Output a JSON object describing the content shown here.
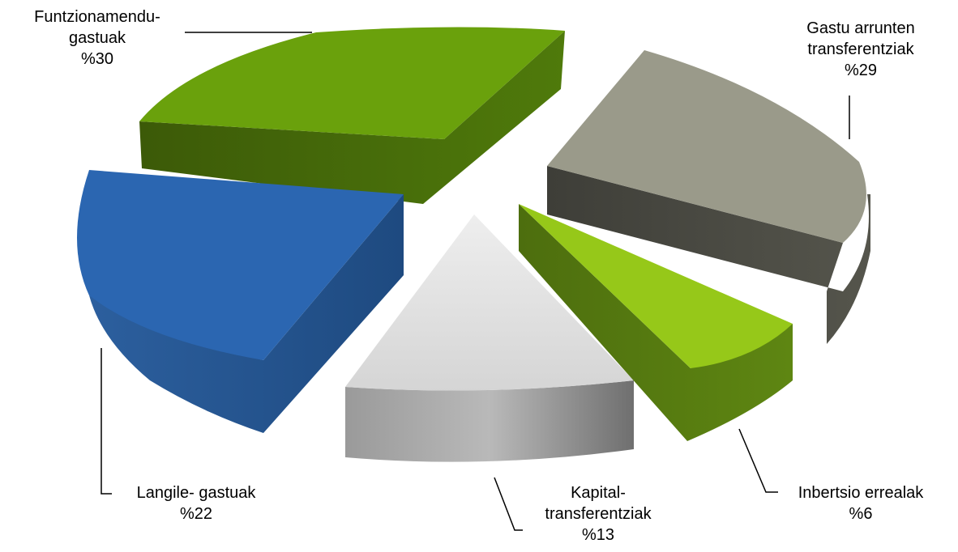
{
  "chart_data": {
    "type": "pie",
    "style": "3d-exploded",
    "title": "",
    "categories": [
      "Funtzionamendu-gastuak",
      "Gastu arrunten transferentziak",
      "Inbertsio errealak",
      "Kapital-transferentziak",
      "Langile- gastuak"
    ],
    "values": [
      30,
      29,
      6,
      13,
      22
    ],
    "colors": [
      "#6aa10c",
      "#9a9a8a",
      "#96c819",
      "#d9d9d9",
      "#2b66b1"
    ],
    "labels": [
      {
        "line1": "Funtzionamendu-",
        "line2": "gastuak",
        "value": "%30"
      },
      {
        "line1": "Gastu arrunten",
        "line2": "transferentziak",
        "value": "%29"
      },
      {
        "line1": "Inbertsio errealak",
        "line2": "",
        "value": "%6"
      },
      {
        "line1": "Kapital-",
        "line2": "transferentziak",
        "value": "%13"
      },
      {
        "line1": "Langile- gastuak",
        "line2": "",
        "value": "%22"
      }
    ]
  }
}
